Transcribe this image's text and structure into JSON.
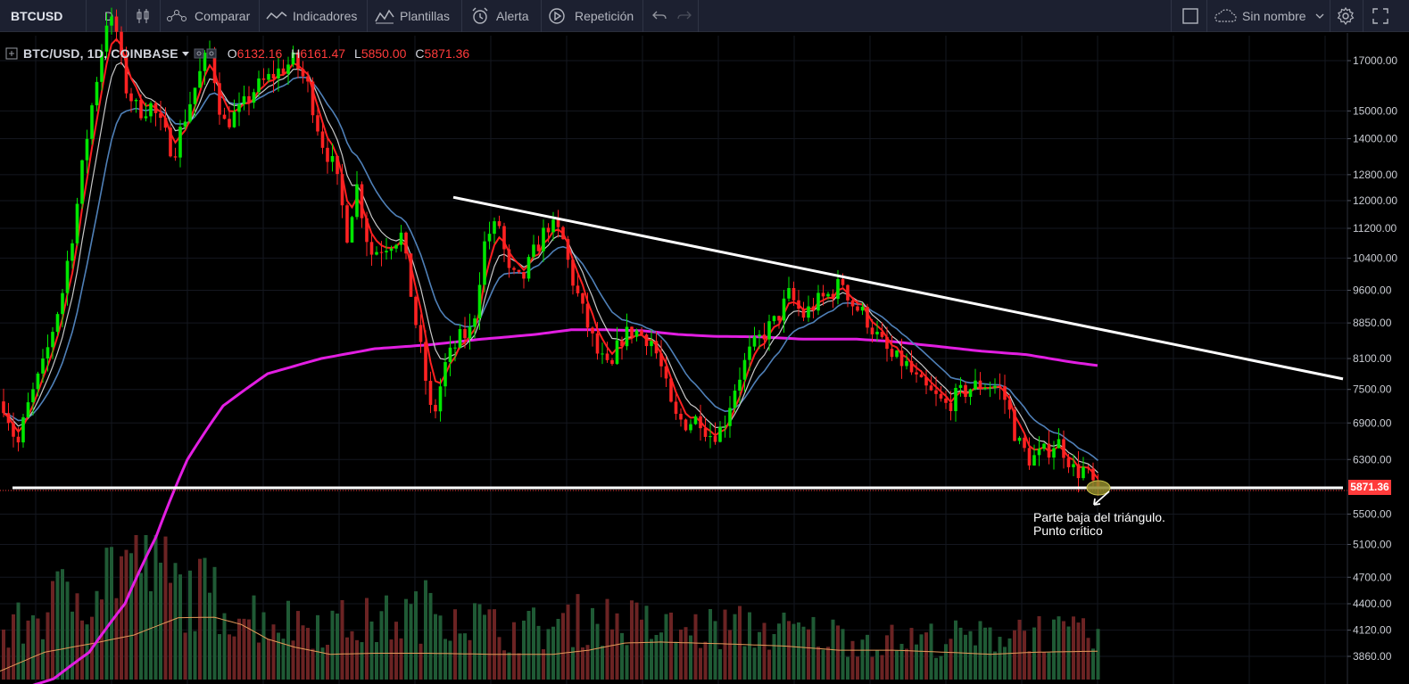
{
  "toolbar": {
    "symbol": "BTCUSD",
    "interval": "D",
    "compare_label": "Comparar",
    "indicators_label": "Indicadores",
    "templates_label": "Plantillas",
    "alert_label": "Alerta",
    "replay_label": "Repetición",
    "layout_name": "Sin nombre"
  },
  "legend": {
    "symbol": "BTC/USD, 1D, COINBASE",
    "open_label": "O",
    "open": "6132.16",
    "high_label": "H",
    "high": "6161.47",
    "low_label": "L",
    "low": "5850.00",
    "close_label": "C",
    "close": "5871.36"
  },
  "last_price_label": "5871.36",
  "annotation": {
    "line1": "Parte baja del triángulo.",
    "line2": "Punto crítico"
  },
  "colors": {
    "up": "#00e600",
    "down": "#ff2222",
    "ema_fast": "#ff2020",
    "ema_mid": "#c8c8c8",
    "ema_slow": "#4f80b8",
    "ma_long": "#e21ee2",
    "trendline": "#ffffff",
    "vol_ma": "#e59a5a"
  },
  "chart_data": {
    "type": "candlestick",
    "symbol": "BTC/USD",
    "interval": "1D",
    "exchange": "COINBASE",
    "y_scale": "log",
    "y_ticks": [
      17000,
      15000,
      14000,
      12800,
      12000,
      11200,
      10400,
      9600,
      8850,
      8100,
      7500,
      6900,
      6300,
      5500,
      5100,
      4700,
      4400,
      4120,
      3860
    ],
    "price_knots": [
      [
        0,
        7300
      ],
      [
        10,
        7250
      ],
      [
        25,
        6500
      ],
      [
        35,
        7100
      ],
      [
        55,
        8000
      ],
      [
        75,
        9500
      ],
      [
        90,
        11500
      ],
      [
        100,
        13500
      ],
      [
        115,
        16500
      ],
      [
        125,
        18800
      ],
      [
        135,
        18500
      ],
      [
        145,
        16000
      ],
      [
        160,
        15000
      ],
      [
        175,
        15200
      ],
      [
        185,
        14500
      ],
      [
        200,
        13500
      ],
      [
        225,
        16000
      ],
      [
        240,
        17500
      ],
      [
        255,
        14500
      ],
      [
        275,
        15000
      ],
      [
        290,
        15800
      ],
      [
        315,
        16500
      ],
      [
        335,
        17000
      ],
      [
        350,
        16000
      ],
      [
        365,
        14000
      ],
      [
        380,
        13000
      ],
      [
        395,
        11000
      ],
      [
        405,
        12500
      ],
      [
        420,
        10500
      ],
      [
        440,
        10800
      ],
      [
        455,
        11000
      ],
      [
        470,
        9000
      ],
      [
        490,
        6900
      ],
      [
        505,
        8000
      ],
      [
        520,
        8500
      ],
      [
        535,
        8700
      ],
      [
        550,
        11000
      ],
      [
        565,
        11300
      ],
      [
        575,
        10000
      ],
      [
        590,
        9800
      ],
      [
        605,
        10600
      ],
      [
        620,
        11300
      ],
      [
        635,
        11000
      ],
      [
        645,
        10000
      ],
      [
        660,
        9000
      ],
      [
        675,
        8200
      ],
      [
        690,
        7800
      ],
      [
        700,
        8500
      ],
      [
        715,
        8700
      ],
      [
        735,
        8500
      ],
      [
        745,
        8000
      ],
      [
        760,
        7000
      ],
      [
        775,
        6900
      ],
      [
        790,
        7000
      ],
      [
        800,
        6700
      ],
      [
        815,
        6800
      ],
      [
        830,
        7600
      ],
      [
        845,
        8200
      ],
      [
        860,
        8600
      ],
      [
        875,
        8900
      ],
      [
        890,
        9500
      ],
      [
        905,
        9000
      ],
      [
        920,
        9300
      ],
      [
        935,
        9500
      ],
      [
        950,
        9800
      ],
      [
        960,
        9300
      ],
      [
        975,
        9000
      ],
      [
        990,
        8500
      ],
      [
        1005,
        8100
      ],
      [
        1020,
        8000
      ],
      [
        1035,
        7600
      ],
      [
        1050,
        7400
      ],
      [
        1065,
        7200
      ],
      [
        1080,
        7400
      ],
      [
        1095,
        7550
      ],
      [
        1110,
        7600
      ],
      [
        1125,
        7550
      ],
      [
        1135,
        7200
      ],
      [
        1145,
        6600
      ],
      [
        1160,
        6300
      ],
      [
        1175,
        6400
      ],
      [
        1190,
        6600
      ],
      [
        1200,
        6400
      ],
      [
        1210,
        6100
      ],
      [
        1220,
        6150
      ],
      [
        1233,
        5871
      ]
    ],
    "long_ma_knots": [
      [
        0,
        3500
      ],
      [
        60,
        3650
      ],
      [
        100,
        3900
      ],
      [
        140,
        4400
      ],
      [
        175,
        5200
      ],
      [
        210,
        6300
      ],
      [
        250,
        7200
      ],
      [
        300,
        7800
      ],
      [
        360,
        8100
      ],
      [
        420,
        8300
      ],
      [
        480,
        8380
      ],
      [
        540,
        8500
      ],
      [
        600,
        8600
      ],
      [
        640,
        8700
      ],
      [
        680,
        8700
      ],
      [
        720,
        8680
      ],
      [
        760,
        8600
      ],
      [
        800,
        8560
      ],
      [
        850,
        8550
      ],
      [
        900,
        8500
      ],
      [
        960,
        8500
      ],
      [
        1000,
        8450
      ],
      [
        1050,
        8350
      ],
      [
        1100,
        8250
      ],
      [
        1150,
        8180
      ],
      [
        1200,
        8030
      ],
      [
        1230,
        7960
      ]
    ],
    "vol_ma_knots": [
      [
        0,
        3720
      ],
      [
        50,
        3900
      ],
      [
        100,
        3980
      ],
      [
        150,
        4070
      ],
      [
        200,
        4250
      ],
      [
        240,
        4255
      ],
      [
        270,
        4180
      ],
      [
        300,
        4030
      ],
      [
        330,
        3950
      ],
      [
        370,
        3880
      ],
      [
        420,
        3890
      ],
      [
        480,
        3890
      ],
      [
        550,
        3880
      ],
      [
        620,
        3880
      ],
      [
        660,
        3920
      ],
      [
        700,
        3990
      ],
      [
        740,
        4000
      ],
      [
        780,
        3990
      ],
      [
        820,
        3980
      ],
      [
        880,
        3960
      ],
      [
        940,
        3920
      ],
      [
        1000,
        3920
      ],
      [
        1060,
        3900
      ],
      [
        1110,
        3880
      ],
      [
        1160,
        3900
      ],
      [
        1230,
        3910
      ]
    ],
    "vol_knots": [
      [
        0,
        0.3
      ],
      [
        30,
        0.42
      ],
      [
        60,
        0.55
      ],
      [
        100,
        0.7
      ],
      [
        130,
        0.85
      ],
      [
        160,
        0.9
      ],
      [
        180,
        0.8
      ],
      [
        200,
        0.65
      ],
      [
        230,
        0.62
      ],
      [
        270,
        0.5
      ],
      [
        320,
        0.42
      ],
      [
        360,
        0.42
      ],
      [
        400,
        0.4
      ],
      [
        450,
        0.45
      ],
      [
        500,
        0.55
      ],
      [
        560,
        0.35
      ],
      [
        620,
        0.38
      ],
      [
        660,
        0.45
      ],
      [
        700,
        0.42
      ],
      [
        760,
        0.35
      ],
      [
        820,
        0.38
      ],
      [
        880,
        0.35
      ],
      [
        940,
        0.32
      ],
      [
        1000,
        0.28
      ],
      [
        1050,
        0.3
      ],
      [
        1100,
        0.3
      ],
      [
        1140,
        0.38
      ],
      [
        1190,
        0.32
      ],
      [
        1230,
        0.3
      ]
    ],
    "trendlines": [
      {
        "name": "descending-resistance",
        "from": [
          508,
          12100
        ],
        "to": [
          1505,
          7700
        ]
      },
      {
        "name": "horizontal-support",
        "from": [
          14,
          5871
        ],
        "to": [
          1505,
          5871
        ]
      }
    ],
    "last_close": 5871.36
  }
}
